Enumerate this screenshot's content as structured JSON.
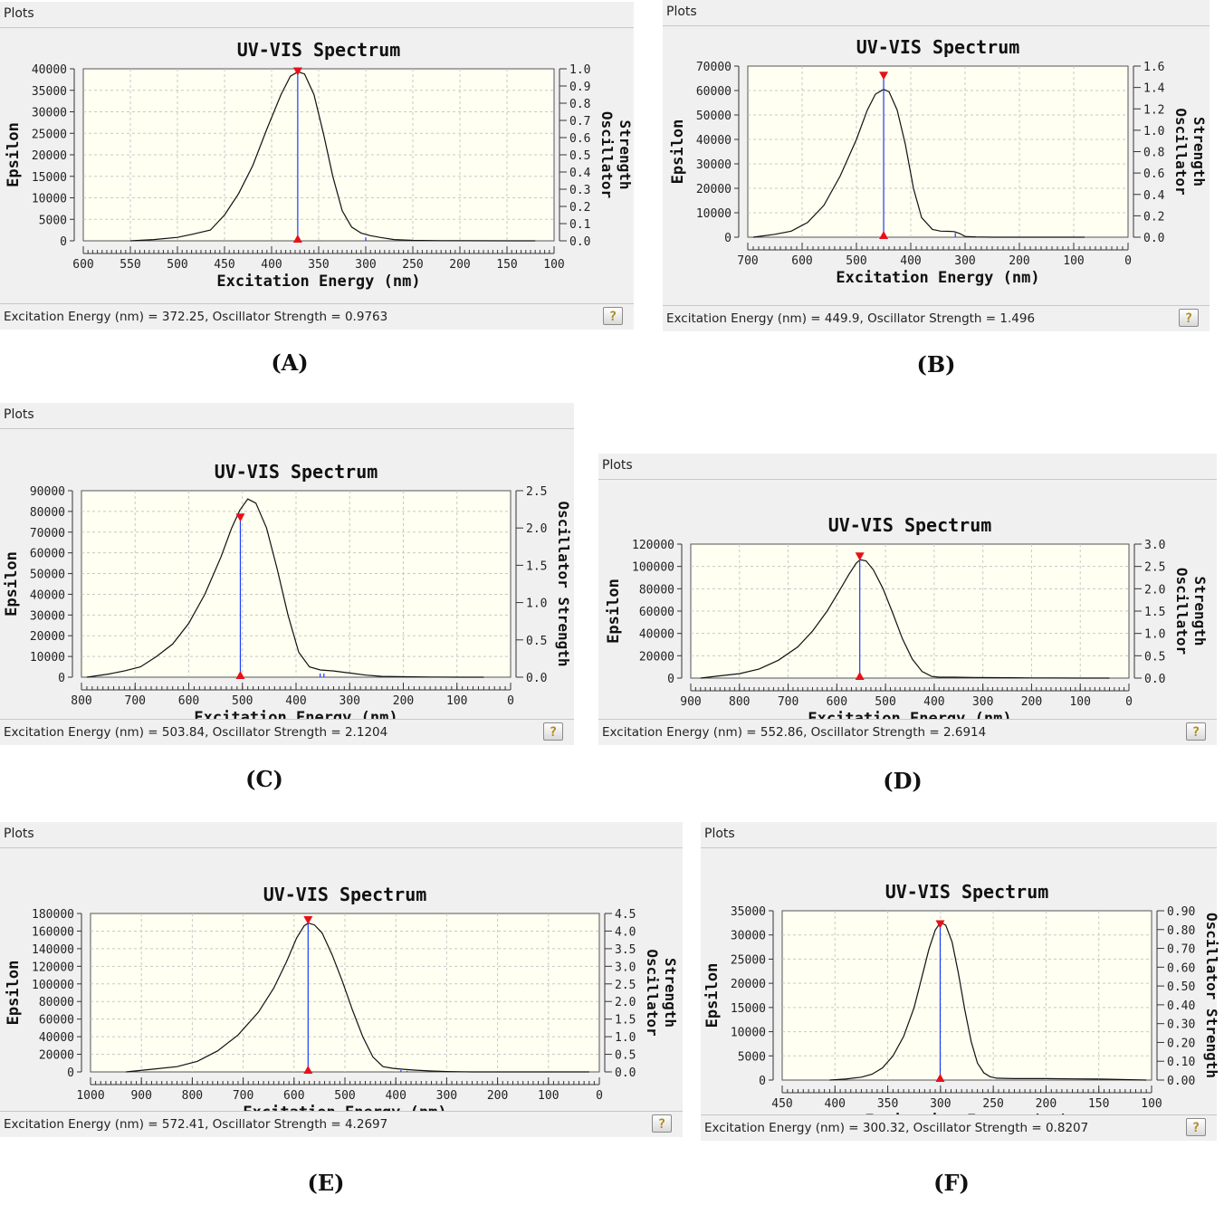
{
  "header_label": "Plots",
  "chart_data": [
    {
      "id": "A",
      "type": "line",
      "title": "UV-VIS Spectrum",
      "xlabel": "Excitation Energy (nm)",
      "ylabel": "Epsilon",
      "y2label": [
        "Oscillator",
        "Strength"
      ],
      "xlim": [
        600,
        100
      ],
      "xticks": [
        600,
        550,
        500,
        450,
        400,
        350,
        300,
        250,
        200,
        150,
        100
      ],
      "ylim": [
        0,
        40000
      ],
      "yticks": [
        "0",
        "5000",
        "10000",
        "15000",
        "20000",
        "25000",
        "30000",
        "35000",
        "40000"
      ],
      "y2lim": [
        0,
        1.0
      ],
      "y2ticks": [
        "0.0",
        "0.1",
        "0.2",
        "0.3",
        "0.4",
        "0.5",
        "0.6",
        "0.7",
        "0.8",
        "0.9",
        "1.0"
      ],
      "grid": true,
      "series": [
        {
          "x": [
            550,
            525,
            500,
            485,
            465,
            450,
            435,
            420,
            405,
            390,
            380,
            372,
            365,
            355,
            345,
            335,
            325,
            315,
            305,
            295,
            285,
            270,
            250,
            220,
            190,
            150,
            120
          ],
          "y": [
            0,
            300,
            800,
            1500,
            2500,
            6000,
            11000,
            17500,
            26000,
            34000,
            38300,
            39300,
            38800,
            34000,
            25000,
            15000,
            7000,
            3200,
            1800,
            1200,
            800,
            300,
            100,
            50,
            20,
            0,
            0
          ]
        }
      ],
      "sticks": [
        {
          "x": 372.25,
          "y": 0.9763
        },
        {
          "x": 300,
          "y": 0.02
        }
      ],
      "status": "Excitation Energy (nm) = 372.25, Oscillator Strength = 0.9763",
      "caption": "(A)"
    },
    {
      "id": "B",
      "type": "line",
      "title": "UV-VIS Spectrum",
      "xlabel": "Excitation Energy (nm)",
      "ylabel": "Epsilon",
      "y2label": [
        "Oscillator",
        "Strength"
      ],
      "xlim": [
        700,
        0
      ],
      "xticks": [
        700,
        600,
        500,
        400,
        300,
        200,
        100,
        0
      ],
      "ylim": [
        0,
        70000
      ],
      "yticks": [
        "0",
        "10000",
        "20000",
        "30000",
        "40000",
        "50000",
        "60000",
        "70000"
      ],
      "y2lim": [
        0,
        1.6
      ],
      "y2ticks": [
        "0.0",
        "0.2",
        "0.4",
        "0.6",
        "0.8",
        "1.0",
        "1.2",
        "1.4",
        "1.6"
      ],
      "grid": true,
      "series": [
        {
          "x": [
            690,
            650,
            620,
            590,
            560,
            530,
            500,
            480,
            465,
            450,
            440,
            425,
            410,
            395,
            380,
            360,
            345,
            330,
            320,
            310,
            300,
            280,
            250,
            200,
            150,
            80
          ],
          "y": [
            0,
            1200,
            2500,
            6000,
            13000,
            25000,
            40000,
            52000,
            58500,
            60500,
            59500,
            52000,
            38000,
            20000,
            8000,
            3200,
            2500,
            2400,
            2300,
            1500,
            300,
            100,
            0,
            0,
            0,
            0
          ]
        }
      ],
      "sticks": [
        {
          "x": 449.9,
          "y": 1.496
        },
        {
          "x": 318,
          "y": 0.04
        }
      ],
      "status": "Excitation Energy (nm) = 449.9, Oscillator Strength = 1.496",
      "caption": "(B)"
    },
    {
      "id": "C",
      "type": "line",
      "title": "UV-VIS Spectrum",
      "xlabel": "Excitation Energy (nm)",
      "ylabel": "Epsilon",
      "y2label": [
        "Oscillator Strength"
      ],
      "xlim": [
        800,
        0
      ],
      "xticks": [
        800,
        700,
        600,
        500,
        400,
        300,
        200,
        100,
        0
      ],
      "ylim": [
        0,
        90000
      ],
      "yticks": [
        "0",
        "10000",
        "20000",
        "30000",
        "40000",
        "50000",
        "60000",
        "70000",
        "80000",
        "90000"
      ],
      "y2lim": [
        0,
        2.5
      ],
      "y2ticks": [
        "0.0",
        "0.5",
        "1.0",
        "1.5",
        "2.0",
        "2.5"
      ],
      "grid": true,
      "series": [
        {
          "x": [
            790,
            750,
            720,
            690,
            660,
            630,
            600,
            570,
            540,
            520,
            505,
            490,
            475,
            455,
            435,
            415,
            395,
            375,
            355,
            330,
            300,
            270,
            240,
            200,
            150,
            100,
            50
          ],
          "y": [
            0,
            1500,
            3000,
            5000,
            10000,
            16000,
            26000,
            40000,
            58000,
            72000,
            80500,
            86000,
            84000,
            72000,
            52000,
            30000,
            12000,
            5000,
            3500,
            3000,
            2000,
            1000,
            400,
            200,
            100,
            0,
            0
          ]
        }
      ],
      "sticks": [
        {
          "x": 503.84,
          "y": 2.1204
        },
        {
          "x": 355,
          "y": 0.05
        },
        {
          "x": 348,
          "y": 0.05
        }
      ],
      "status": "Excitation Energy (nm) = 503.84, Oscillator Strength = 2.1204",
      "caption": "(C)"
    },
    {
      "id": "D",
      "type": "line",
      "title": "UV-VIS Spectrum",
      "xlabel": "Excitation Energy (nm)",
      "ylabel": "Epsilon",
      "y2label": [
        "Oscillator",
        "Strength"
      ],
      "xlim": [
        900,
        0
      ],
      "xticks": [
        900,
        800,
        700,
        600,
        500,
        400,
        300,
        200,
        100,
        0
      ],
      "ylim": [
        0,
        120000
      ],
      "yticks": [
        "0",
        "20000",
        "40000",
        "60000",
        "80000",
        "100000",
        "120000"
      ],
      "y2lim": [
        0,
        3.0
      ],
      "y2ticks": [
        "0.0",
        "0.5",
        "1.0",
        "1.5",
        "2.0",
        "2.5",
        "3.0"
      ],
      "grid": true,
      "series": [
        {
          "x": [
            880,
            840,
            800,
            760,
            720,
            680,
            650,
            620,
            595,
            575,
            560,
            552,
            540,
            525,
            505,
            485,
            465,
            445,
            425,
            405,
            390,
            360,
            320,
            280,
            240,
            200,
            150,
            100,
            40
          ],
          "y": [
            0,
            2000,
            4000,
            8000,
            16000,
            28000,
            42000,
            60000,
            78000,
            93000,
            103000,
            106000,
            105000,
            97000,
            80000,
            58000,
            35000,
            17000,
            6000,
            1500,
            800,
            800,
            600,
            400,
            300,
            200,
            100,
            0,
            0
          ]
        }
      ],
      "sticks": [
        {
          "x": 552.86,
          "y": 2.6914
        }
      ],
      "status": "Excitation Energy (nm) = 552.86, Oscillator Strength = 2.6914",
      "caption": "(D)"
    },
    {
      "id": "E",
      "type": "line",
      "title": "UV-VIS Spectrum",
      "xlabel": "Excitation Energy (nm)",
      "ylabel": "Epsilon",
      "y2label": [
        "Oscillator",
        "Strength"
      ],
      "xlim": [
        1000,
        0
      ],
      "xticks": [
        1000,
        900,
        800,
        700,
        600,
        500,
        400,
        300,
        200,
        100,
        0
      ],
      "ylim": [
        0,
        180000
      ],
      "yticks": [
        "0",
        "20000",
        "40000",
        "60000",
        "80000",
        "100000",
        "120000",
        "140000",
        "160000",
        "180000"
      ],
      "y2lim": [
        0,
        4.5
      ],
      "y2ticks": [
        "0.0",
        "0.5",
        "1.0",
        "1.5",
        "2.0",
        "2.5",
        "3.0",
        "3.5",
        "4.0",
        "4.5"
      ],
      "grid": true,
      "series": [
        {
          "x": [
            930,
            880,
            830,
            790,
            750,
            710,
            670,
            640,
            615,
            595,
            580,
            572,
            560,
            545,
            525,
            505,
            485,
            465,
            445,
            425,
            405,
            385,
            360,
            330,
            300,
            250,
            200,
            100,
            20
          ],
          "y": [
            0,
            3000,
            6000,
            12000,
            24000,
            42000,
            68000,
            95000,
            125000,
            152000,
            166000,
            169000,
            167000,
            158000,
            133000,
            103000,
            70000,
            40000,
            17000,
            6000,
            4000,
            3000,
            2000,
            1000,
            400,
            0,
            0,
            0,
            0
          ]
        }
      ],
      "sticks": [
        {
          "x": 572.41,
          "y": 4.2697
        },
        {
          "x": 390,
          "y": 0.05
        },
        {
          "x": 378,
          "y": 0.03
        }
      ],
      "status": "Excitation Energy (nm) = 572.41, Oscillator Strength = 4.2697",
      "caption": "(E)"
    },
    {
      "id": "F",
      "type": "line",
      "title": "UV-VIS Spectrum",
      "xlabel": "Excitation Energy (nm)",
      "ylabel": "Epsilon",
      "y2label": [
        "Oscillator Strength"
      ],
      "xlim": [
        450,
        100
      ],
      "xticks": [
        450,
        400,
        350,
        300,
        250,
        200,
        150,
        100
      ],
      "ylim": [
        0,
        35000
      ],
      "yticks": [
        "0",
        "5000",
        "10000",
        "15000",
        "20000",
        "25000",
        "30000",
        "35000"
      ],
      "y2lim": [
        0,
        0.9
      ],
      "y2ticks": [
        "0.00",
        "0.10",
        "0.20",
        "0.30",
        "0.40",
        "0.50",
        "0.60",
        "0.70",
        "0.80",
        "0.90"
      ],
      "grid": true,
      "series": [
        {
          "x": [
            405,
            390,
            375,
            365,
            355,
            345,
            335,
            325,
            318,
            311,
            305,
            300,
            295,
            289,
            283,
            277,
            271,
            265,
            259,
            253,
            247,
            240,
            230,
            220,
            200,
            175,
            150,
            125,
            105
          ],
          "y": [
            0,
            200,
            600,
            1200,
            2500,
            5000,
            9000,
            15000,
            21000,
            27000,
            31000,
            32600,
            32000,
            28500,
            22000,
            14500,
            8000,
            3500,
            1500,
            700,
            400,
            350,
            300,
            300,
            300,
            250,
            200,
            100,
            0
          ]
        }
      ],
      "sticks": [
        {
          "x": 300.32,
          "y": 0.8207
        }
      ],
      "status": "Excitation Energy (nm) = 300.32, Oscillator Strength = 0.8207",
      "caption": "(F)"
    }
  ]
}
